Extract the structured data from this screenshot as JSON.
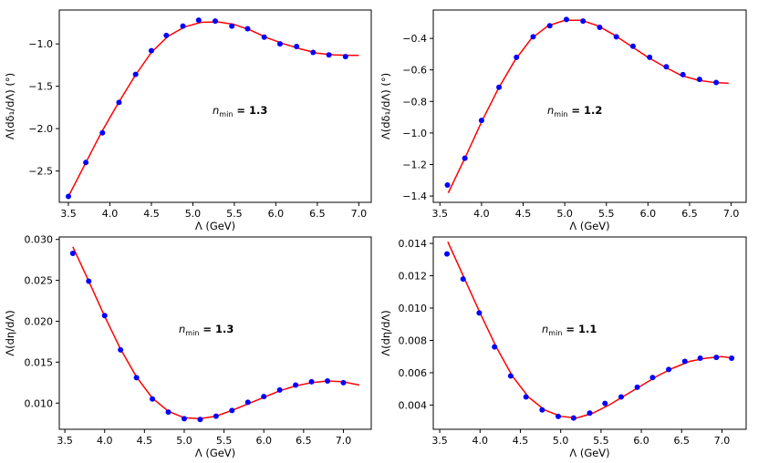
{
  "figure": {
    "panels": [
      "top-left",
      "top-right",
      "bottom-left",
      "bottom-right"
    ]
  },
  "chart_data": [
    {
      "type": "scatter",
      "panel": "top-left",
      "title": "",
      "xlabel": "Λ (GeV)",
      "ylabel": "Λ(dδ₁/dΛ) (°)",
      "annotation": {
        "n": "n",
        "sub": "min",
        "rest": " = 1.3"
      },
      "xlim": [
        3.39,
        7.15
      ],
      "ylim": [
        -2.87,
        -0.6
      ],
      "xticks": [
        3.5,
        4.0,
        4.5,
        5.0,
        5.5,
        6.0,
        6.5,
        7.0
      ],
      "xtick_labels": [
        "3.5",
        "4.0",
        "4.5",
        "5.0",
        "5.5",
        "6.0",
        "6.5",
        "7.0"
      ],
      "yticks": [
        -2.5,
        -2.0,
        -1.5,
        -1.0
      ],
      "ytick_labels": [
        "−2.5",
        "−2.0",
        "−1.5",
        "−1.0"
      ],
      "series": [
        {
          "name": "data",
          "style": "points",
          "color": "#0000ff",
          "x": [
            3.5,
            3.71,
            3.91,
            4.11,
            4.31,
            4.5,
            4.68,
            4.88,
            5.07,
            5.27,
            5.47,
            5.66,
            5.86,
            6.05,
            6.25,
            6.45,
            6.64,
            6.84
          ],
          "y": [
            -2.8,
            -2.4,
            -2.05,
            -1.69,
            -1.36,
            -1.08,
            -0.9,
            -0.79,
            -0.72,
            -0.73,
            -0.79,
            -0.82,
            -0.92,
            -1.0,
            -1.03,
            -1.1,
            -1.13,
            -1.15
          ]
        },
        {
          "name": "fit",
          "style": "line",
          "color": "#ff0000",
          "x": [
            3.5,
            3.7,
            3.9,
            4.1,
            4.3,
            4.5,
            4.7,
            4.9,
            5.1,
            5.3,
            5.5,
            5.7,
            5.9,
            6.1,
            6.3,
            6.5,
            6.7,
            6.9,
            7.0
          ],
          "y": [
            -2.8,
            -2.42,
            -2.04,
            -1.7,
            -1.38,
            -1.1,
            -0.91,
            -0.8,
            -0.745,
            -0.74,
            -0.77,
            -0.84,
            -0.93,
            -1.0,
            -1.06,
            -1.11,
            -1.13,
            -1.135,
            -1.135
          ]
        }
      ]
    },
    {
      "type": "scatter",
      "panel": "top-right",
      "title": "",
      "xlabel": "Λ (GeV)",
      "ylabel": "Λ(dδ₁/dΛ) (°)",
      "annotation": {
        "n": "n",
        "sub": "min",
        "rest": " = 1.2"
      },
      "xlim": [
        3.42,
        7.18
      ],
      "ylim": [
        -1.44,
        -0.22
      ],
      "xticks": [
        3.5,
        4.0,
        4.5,
        5.0,
        5.5,
        6.0,
        6.5,
        7.0
      ],
      "xtick_labels": [
        "3.5",
        "4.0",
        "4.5",
        "5.0",
        "5.5",
        "6.0",
        "6.5",
        "7.0"
      ],
      "yticks": [
        -1.4,
        -1.2,
        -1.0,
        -0.8,
        -0.6,
        -0.4
      ],
      "ytick_labels": [
        "−1.4",
        "−1.2",
        "−1.0",
        "−0.8",
        "−0.6",
        "−0.4"
      ],
      "series": [
        {
          "name": "data",
          "style": "points",
          "color": "#0000ff",
          "x": [
            3.59,
            3.8,
            4.0,
            4.21,
            4.42,
            4.62,
            4.82,
            5.02,
            5.22,
            5.42,
            5.62,
            5.82,
            6.02,
            6.22,
            6.42,
            6.62,
            6.82
          ],
          "y": [
            -1.33,
            -1.16,
            -0.92,
            -0.71,
            -0.52,
            -0.39,
            -0.32,
            -0.28,
            -0.29,
            -0.33,
            -0.39,
            -0.45,
            -0.52,
            -0.58,
            -0.63,
            -0.66,
            -0.68
          ]
        },
        {
          "name": "fit",
          "style": "line",
          "color": "#ff0000",
          "x": [
            3.6,
            3.8,
            4.0,
            4.2,
            4.4,
            4.6,
            4.8,
            5.0,
            5.2,
            5.4,
            5.6,
            5.8,
            6.0,
            6.2,
            6.4,
            6.6,
            6.8,
            6.97
          ],
          "y": [
            -1.38,
            -1.16,
            -0.93,
            -0.72,
            -0.54,
            -0.4,
            -0.32,
            -0.285,
            -0.285,
            -0.32,
            -0.38,
            -0.45,
            -0.52,
            -0.58,
            -0.635,
            -0.665,
            -0.68,
            -0.685
          ]
        }
      ]
    },
    {
      "type": "scatter",
      "panel": "bottom-left",
      "title": "",
      "xlabel": "Λ (GeV)",
      "ylabel": "Λ(dη/dΛ)",
      "annotation": {
        "n": "n",
        "sub": "min",
        "rest": " = 1.3"
      },
      "xlim": [
        3.43,
        7.35
      ],
      "ylim": [
        0.0068,
        0.0303
      ],
      "xticks": [
        3.5,
        4.0,
        4.5,
        5.0,
        5.5,
        6.0,
        6.5,
        7.0
      ],
      "xtick_labels": [
        "3.5",
        "4.0",
        "4.5",
        "5.0",
        "5.5",
        "6.0",
        "6.5",
        "7.0"
      ],
      "yticks": [
        0.01,
        0.015,
        0.02,
        0.025,
        0.03
      ],
      "ytick_labels": [
        "0.010",
        "0.015",
        "0.020",
        "0.025",
        "0.030"
      ],
      "series": [
        {
          "name": "data",
          "style": "points",
          "color": "#0000ff",
          "x": [
            3.6,
            3.8,
            4.0,
            4.2,
            4.4,
            4.6,
            4.8,
            5.0,
            5.2,
            5.4,
            5.6,
            5.8,
            6.0,
            6.2,
            6.4,
            6.6,
            6.8,
            7.0
          ],
          "y": [
            0.0283,
            0.0249,
            0.0207,
            0.0165,
            0.0131,
            0.0105,
            0.0089,
            0.0081,
            0.008,
            0.0084,
            0.0091,
            0.0101,
            0.0108,
            0.0116,
            0.0122,
            0.0126,
            0.0127,
            0.0125
          ]
        },
        {
          "name": "fit",
          "style": "line",
          "color": "#ff0000",
          "x": [
            3.6,
            3.8,
            4.0,
            4.2,
            4.4,
            4.6,
            4.8,
            5.0,
            5.2,
            5.4,
            5.6,
            5.8,
            6.0,
            6.2,
            6.4,
            6.6,
            6.8,
            7.0,
            7.2
          ],
          "y": [
            0.0291,
            0.0249,
            0.0206,
            0.0166,
            0.0132,
            0.0106,
            0.009,
            0.0082,
            0.0081,
            0.0084,
            0.0091,
            0.0099,
            0.0107,
            0.0115,
            0.0121,
            0.0125,
            0.0127,
            0.0126,
            0.0122
          ]
        }
      ]
    },
    {
      "type": "scatter",
      "panel": "bottom-right",
      "title": "",
      "xlabel": "Λ (GeV)",
      "ylabel": "Λ(dη/dΛ)",
      "annotation": {
        "n": "n",
        "sub": "min",
        "rest": " = 1.1"
      },
      "xlim": [
        3.42,
        7.3
      ],
      "ylim": [
        0.0025,
        0.0144
      ],
      "xticks": [
        3.5,
        4.0,
        4.5,
        5.0,
        5.5,
        6.0,
        6.5,
        7.0
      ],
      "xtick_labels": [
        "3.5",
        "4.0",
        "4.5",
        "5.0",
        "5.5",
        "6.0",
        "6.5",
        "7.0"
      ],
      "yticks": [
        0.004,
        0.006,
        0.008,
        0.01,
        0.012,
        0.014
      ],
      "ytick_labels": [
        "0.004",
        "0.006",
        "0.008",
        "0.010",
        "0.012",
        "0.014"
      ],
      "series": [
        {
          "name": "data",
          "style": "points",
          "color": "#0000ff",
          "x": [
            3.59,
            3.79,
            3.99,
            4.18,
            4.38,
            4.57,
            4.77,
            4.97,
            5.16,
            5.36,
            5.55,
            5.75,
            5.95,
            6.14,
            6.34,
            6.54,
            6.73,
            6.93,
            7.12
          ],
          "y": [
            0.01335,
            0.0118,
            0.0097,
            0.0076,
            0.0058,
            0.0045,
            0.0037,
            0.0033,
            0.0032,
            0.0035,
            0.0041,
            0.0045,
            0.0051,
            0.0057,
            0.0062,
            0.0067,
            0.0069,
            0.00695,
            0.0069
          ]
        },
        {
          "name": "fit",
          "style": "line",
          "color": "#ff0000",
          "x": [
            3.6,
            3.8,
            4.0,
            4.2,
            4.4,
            4.6,
            4.8,
            5.0,
            5.2,
            5.4,
            5.6,
            5.8,
            6.0,
            6.2,
            6.4,
            6.6,
            6.8,
            7.0,
            7.15
          ],
          "y": [
            0.0141,
            0.0119,
            0.0097,
            0.0076,
            0.0058,
            0.0045,
            0.0037,
            0.0033,
            0.0032,
            0.0035,
            0.004,
            0.0046,
            0.0052,
            0.0058,
            0.0063,
            0.0067,
            0.0069,
            0.007,
            0.0069
          ]
        }
      ]
    }
  ]
}
